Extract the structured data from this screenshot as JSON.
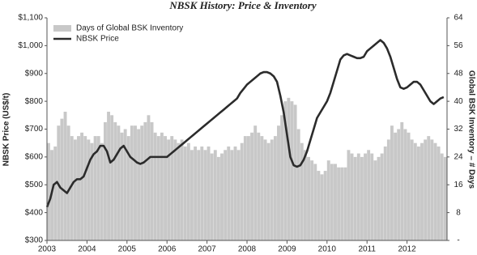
{
  "chart_data": {
    "type": "bar-line",
    "title": "NBSK History: Price & Inventory",
    "y_label": "NBSK Price (US$/t)",
    "y2_label": "Global BSK Inventory – # Days",
    "x": [
      2003,
      2003.083,
      2003.167,
      2003.25,
      2003.333,
      2003.417,
      2003.5,
      2003.583,
      2003.667,
      2003.75,
      2003.833,
      2003.917,
      2004,
      2004.083,
      2004.167,
      2004.25,
      2004.333,
      2004.417,
      2004.5,
      2004.583,
      2004.667,
      2004.75,
      2004.833,
      2004.917,
      2005,
      2005.083,
      2005.167,
      2005.25,
      2005.333,
      2005.417,
      2005.5,
      2005.583,
      2005.667,
      2005.75,
      2005.833,
      2005.917,
      2006,
      2006.083,
      2006.167,
      2006.25,
      2006.333,
      2006.417,
      2006.5,
      2006.583,
      2006.667,
      2006.75,
      2006.833,
      2006.917,
      2007,
      2007.083,
      2007.167,
      2007.25,
      2007.333,
      2007.417,
      2007.5,
      2007.583,
      2007.667,
      2007.75,
      2007.833,
      2007.917,
      2008,
      2008.083,
      2008.167,
      2008.25,
      2008.333,
      2008.417,
      2008.5,
      2008.583,
      2008.667,
      2008.75,
      2008.833,
      2008.917,
      2009,
      2009.083,
      2009.167,
      2009.25,
      2009.333,
      2009.417,
      2009.5,
      2009.583,
      2009.667,
      2009.75,
      2009.833,
      2009.917,
      2010,
      2010.083,
      2010.167,
      2010.25,
      2010.333,
      2010.417,
      2010.5,
      2010.583,
      2010.667,
      2010.75,
      2010.833,
      2010.917,
      2011,
      2011.083,
      2011.167,
      2011.25,
      2011.333,
      2011.417,
      2011.5,
      2011.583,
      2011.667,
      2011.75,
      2011.833,
      2011.917,
      2012,
      2012.083,
      2012.167,
      2012.25,
      2012.333,
      2012.417,
      2012.5,
      2012.583,
      2012.667,
      2012.75,
      2012.833,
      2012.917
    ],
    "series": [
      {
        "name": "Days of Global BSK Inventory",
        "type": "bar",
        "axis": "y2",
        "color": "#c8c8c8",
        "values": [
          28,
          26,
          27,
          33,
          35,
          37,
          33,
          30,
          29,
          30,
          31,
          30,
          29,
          28,
          30,
          30,
          28,
          34,
          37,
          36,
          34,
          33,
          31,
          32,
          30,
          33,
          33,
          32,
          33,
          34,
          36,
          34,
          31,
          30,
          31,
          30,
          29,
          30,
          29,
          28,
          29,
          27,
          28,
          26,
          27,
          26,
          27,
          26,
          27,
          25,
          26,
          24,
          25,
          26,
          27,
          26,
          27,
          26,
          28,
          30,
          30,
          31,
          33,
          31,
          30,
          29,
          28,
          29,
          30,
          33,
          36,
          40,
          41,
          40,
          39,
          32,
          28,
          26,
          24,
          23,
          22,
          20,
          19,
          20,
          23,
          22,
          22,
          21,
          21,
          21,
          26,
          25,
          24,
          25,
          24,
          25,
          26,
          25,
          23,
          24,
          25,
          27,
          29,
          33,
          31,
          32,
          34,
          32,
          31,
          29,
          28,
          27,
          28,
          29,
          30,
          29,
          28,
          27,
          25,
          24
        ]
      },
      {
        "name": "NBSK Price",
        "type": "line",
        "color": "#2b2b2b",
        "values": [
          420,
          450,
          500,
          510,
          490,
          480,
          470,
          490,
          510,
          520,
          520,
          530,
          560,
          590,
          610,
          620,
          640,
          640,
          620,
          580,
          590,
          610,
          630,
          640,
          620,
          600,
          590,
          580,
          575,
          580,
          590,
          600,
          600,
          600,
          600,
          600,
          600,
          610,
          620,
          630,
          640,
          650,
          660,
          670,
          680,
          690,
          700,
          710,
          720,
          730,
          740,
          750,
          760,
          770,
          780,
          790,
          800,
          810,
          830,
          845,
          860,
          870,
          880,
          890,
          900,
          905,
          905,
          900,
          890,
          870,
          820,
          760,
          680,
          600,
          570,
          565,
          570,
          590,
          620,
          660,
          700,
          740,
          760,
          780,
          800,
          830,
          870,
          910,
          950,
          965,
          970,
          965,
          960,
          955,
          955,
          960,
          980,
          990,
          1000,
          1010,
          1020,
          1010,
          990,
          960,
          920,
          880,
          850,
          845,
          850,
          860,
          870,
          870,
          860,
          840,
          820,
          800,
          790,
          800,
          810,
          815
        ]
      }
    ],
    "xlim": [
      2003,
      2013
    ],
    "xticks": [
      2003,
      2004,
      2005,
      2006,
      2007,
      2008,
      2009,
      2010,
      2011,
      2012
    ],
    "ylim": [
      300,
      1100
    ],
    "yticks": [
      {
        "value": 300,
        "label": "$300"
      },
      {
        "value": 400,
        "label": "$400"
      },
      {
        "value": 500,
        "label": "$500"
      },
      {
        "value": 600,
        "label": "$600"
      },
      {
        "value": 700,
        "label": "$700"
      },
      {
        "value": 800,
        "label": "$800"
      },
      {
        "value": 900,
        "label": "$900"
      },
      {
        "value": 1000,
        "label": "$1,000"
      },
      {
        "value": 1100,
        "label": "$1,100"
      }
    ],
    "y2lim": [
      0,
      64
    ],
    "y2ticks": [
      {
        "value": 0,
        "label": "-"
      },
      8,
      16,
      24,
      32,
      40,
      48,
      56,
      64
    ],
    "legend": "top-left"
  }
}
